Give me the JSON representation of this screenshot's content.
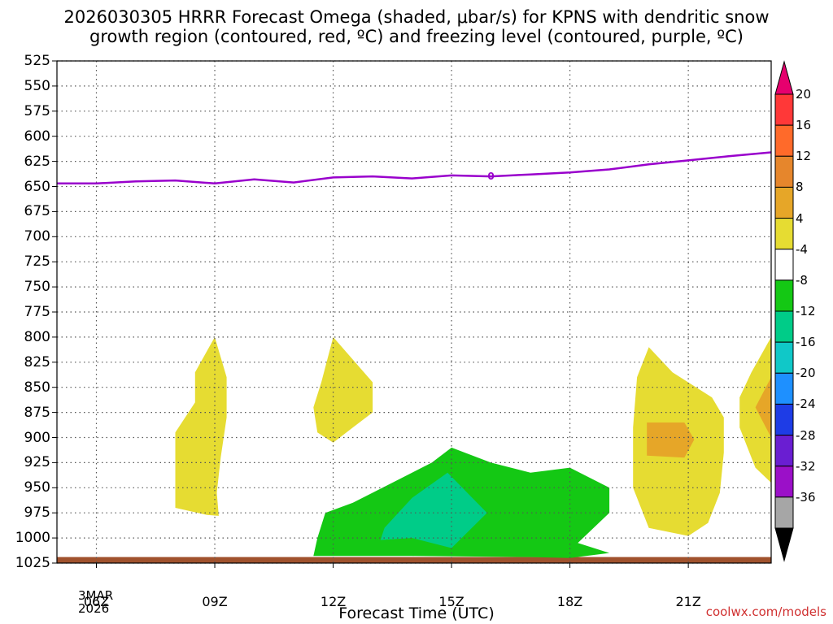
{
  "title_line1": "2026030305 HRRR Forecast Omega (shaded, μbar/s) for KPNS with dendritic snow",
  "title_line2": "growth region (contoured, red, ºC) and freezing level (contoured, purple, ºC)",
  "xaxis_title": "Forecast Time (UTC)",
  "credit": "coolwx.com/models",
  "date_label": [
    "3MAR",
    "2026"
  ],
  "chart_data": {
    "type": "time-height contour",
    "x_ticks": [
      {
        "hour": 6,
        "label": "06Z"
      },
      {
        "hour": 9,
        "label": "09Z"
      },
      {
        "hour": 12,
        "label": "12Z"
      },
      {
        "hour": 15,
        "label": "15Z"
      },
      {
        "hour": 18,
        "label": "18Z"
      },
      {
        "hour": 21,
        "label": "21Z"
      }
    ],
    "x_range_hours": [
      5,
      23.1
    ],
    "y_ticks": [
      "525",
      "550",
      "575",
      "600",
      "625",
      "650",
      "675",
      "700",
      "725",
      "750",
      "775",
      "800",
      "825",
      "850",
      "875",
      "900",
      "925",
      "950",
      "975",
      "1000",
      "1025"
    ],
    "y_range_mb": [
      1025,
      525
    ],
    "freezing_level": {
      "label": "0",
      "color": "#9900cc",
      "points": [
        [
          5,
          647
        ],
        [
          6,
          647
        ],
        [
          7,
          645
        ],
        [
          8,
          644
        ],
        [
          9,
          647
        ],
        [
          10,
          643
        ],
        [
          11,
          646
        ],
        [
          12,
          641
        ],
        [
          13,
          640
        ],
        [
          14,
          642
        ],
        [
          15,
          639
        ],
        [
          16,
          640
        ],
        [
          17,
          638
        ],
        [
          18,
          636
        ],
        [
          19,
          633
        ],
        [
          20,
          628
        ],
        [
          21,
          624
        ],
        [
          22,
          620
        ],
        [
          23.1,
          616
        ]
      ]
    },
    "omega_regions": [
      {
        "level": 4,
        "color": "#e6dc32",
        "points": [
          [
            9,
            800
          ],
          [
            9.3,
            840
          ],
          [
            9.3,
            880
          ],
          [
            9.15,
            920
          ],
          [
            9.05,
            955
          ],
          [
            9.1,
            978
          ],
          [
            8.8,
            977
          ],
          [
            8.0,
            970
          ],
          [
            8.0,
            895
          ],
          [
            8.5,
            865
          ],
          [
            8.5,
            835
          ]
        ]
      },
      {
        "level": 4,
        "color": "#e6dc32",
        "points": [
          [
            12,
            800
          ],
          [
            13,
            845
          ],
          [
            13,
            875
          ],
          [
            12.5,
            890
          ],
          [
            12,
            905
          ],
          [
            11.6,
            895
          ],
          [
            11.5,
            870
          ],
          [
            11.7,
            845
          ]
        ]
      },
      {
        "level": 4,
        "color": "#e6dc32",
        "points": [
          [
            20.0,
            810
          ],
          [
            20.6,
            835
          ],
          [
            21.6,
            860
          ],
          [
            21.9,
            880
          ],
          [
            21.9,
            915
          ],
          [
            21.8,
            955
          ],
          [
            21.5,
            985
          ],
          [
            21.0,
            998
          ],
          [
            20.0,
            990
          ],
          [
            19.6,
            950
          ],
          [
            19.6,
            890
          ],
          [
            19.7,
            840
          ]
        ]
      },
      {
        "level": 4,
        "color": "#e6dc32",
        "points": [
          [
            23.1,
            800
          ],
          [
            23.1,
            945
          ],
          [
            22.7,
            930
          ],
          [
            22.3,
            890
          ],
          [
            22.3,
            860
          ],
          [
            22.6,
            835
          ]
        ]
      },
      {
        "level": 8,
        "color": "#e6a628",
        "points": [
          [
            19.95,
            885
          ],
          [
            20.9,
            885
          ],
          [
            21.15,
            902
          ],
          [
            20.9,
            920
          ],
          [
            19.95,
            918
          ]
        ]
      },
      {
        "level": 8,
        "color": "#e6a628",
        "points": [
          [
            23.1,
            840
          ],
          [
            22.7,
            870
          ],
          [
            23.1,
            900
          ]
        ]
      },
      {
        "level": -4,
        "color": "#14c814",
        "points": [
          [
            15,
            910
          ],
          [
            16,
            925
          ],
          [
            17,
            935
          ],
          [
            18,
            930
          ],
          [
            19,
            950
          ],
          [
            19,
            975
          ],
          [
            18.2,
            1005
          ],
          [
            19,
            1015
          ],
          [
            18,
            1020
          ],
          [
            17,
            1019
          ],
          [
            14,
            1018
          ],
          [
            11.5,
            1018
          ],
          [
            11.6,
            1000
          ],
          [
            11.8,
            975
          ],
          [
            12.5,
            965
          ],
          [
            13.5,
            945
          ],
          [
            14.5,
            925
          ]
        ]
      },
      {
        "level": -8,
        "color": "#00cc88",
        "points": [
          [
            14.9,
            935
          ],
          [
            15.9,
            975
          ],
          [
            15,
            1010
          ],
          [
            14,
            1000
          ],
          [
            13.2,
            1002
          ],
          [
            13.3,
            990
          ],
          [
            14,
            960
          ]
        ]
      }
    ],
    "ground_fill": {
      "color": "#a0522d",
      "level_mb": 1025
    },
    "colorbar": {
      "levels": [
        "20",
        "16",
        "12",
        "8",
        "4",
        "-4",
        "-8",
        "-12",
        "-16",
        "-20",
        "-24",
        "-28",
        "-32",
        "-36"
      ],
      "colors": [
        "#e6006e",
        "#ff3838",
        "#ff6a2a",
        "#e6862c",
        "#e6a628",
        "#e6dc32",
        "#ffffff",
        "#14c814",
        "#00cc88",
        "#10c8c8",
        "#1e90ff",
        "#1e3ce6",
        "#6a1ed2",
        "#9b10c8",
        "#a6a6a6",
        "#000000"
      ]
    }
  }
}
